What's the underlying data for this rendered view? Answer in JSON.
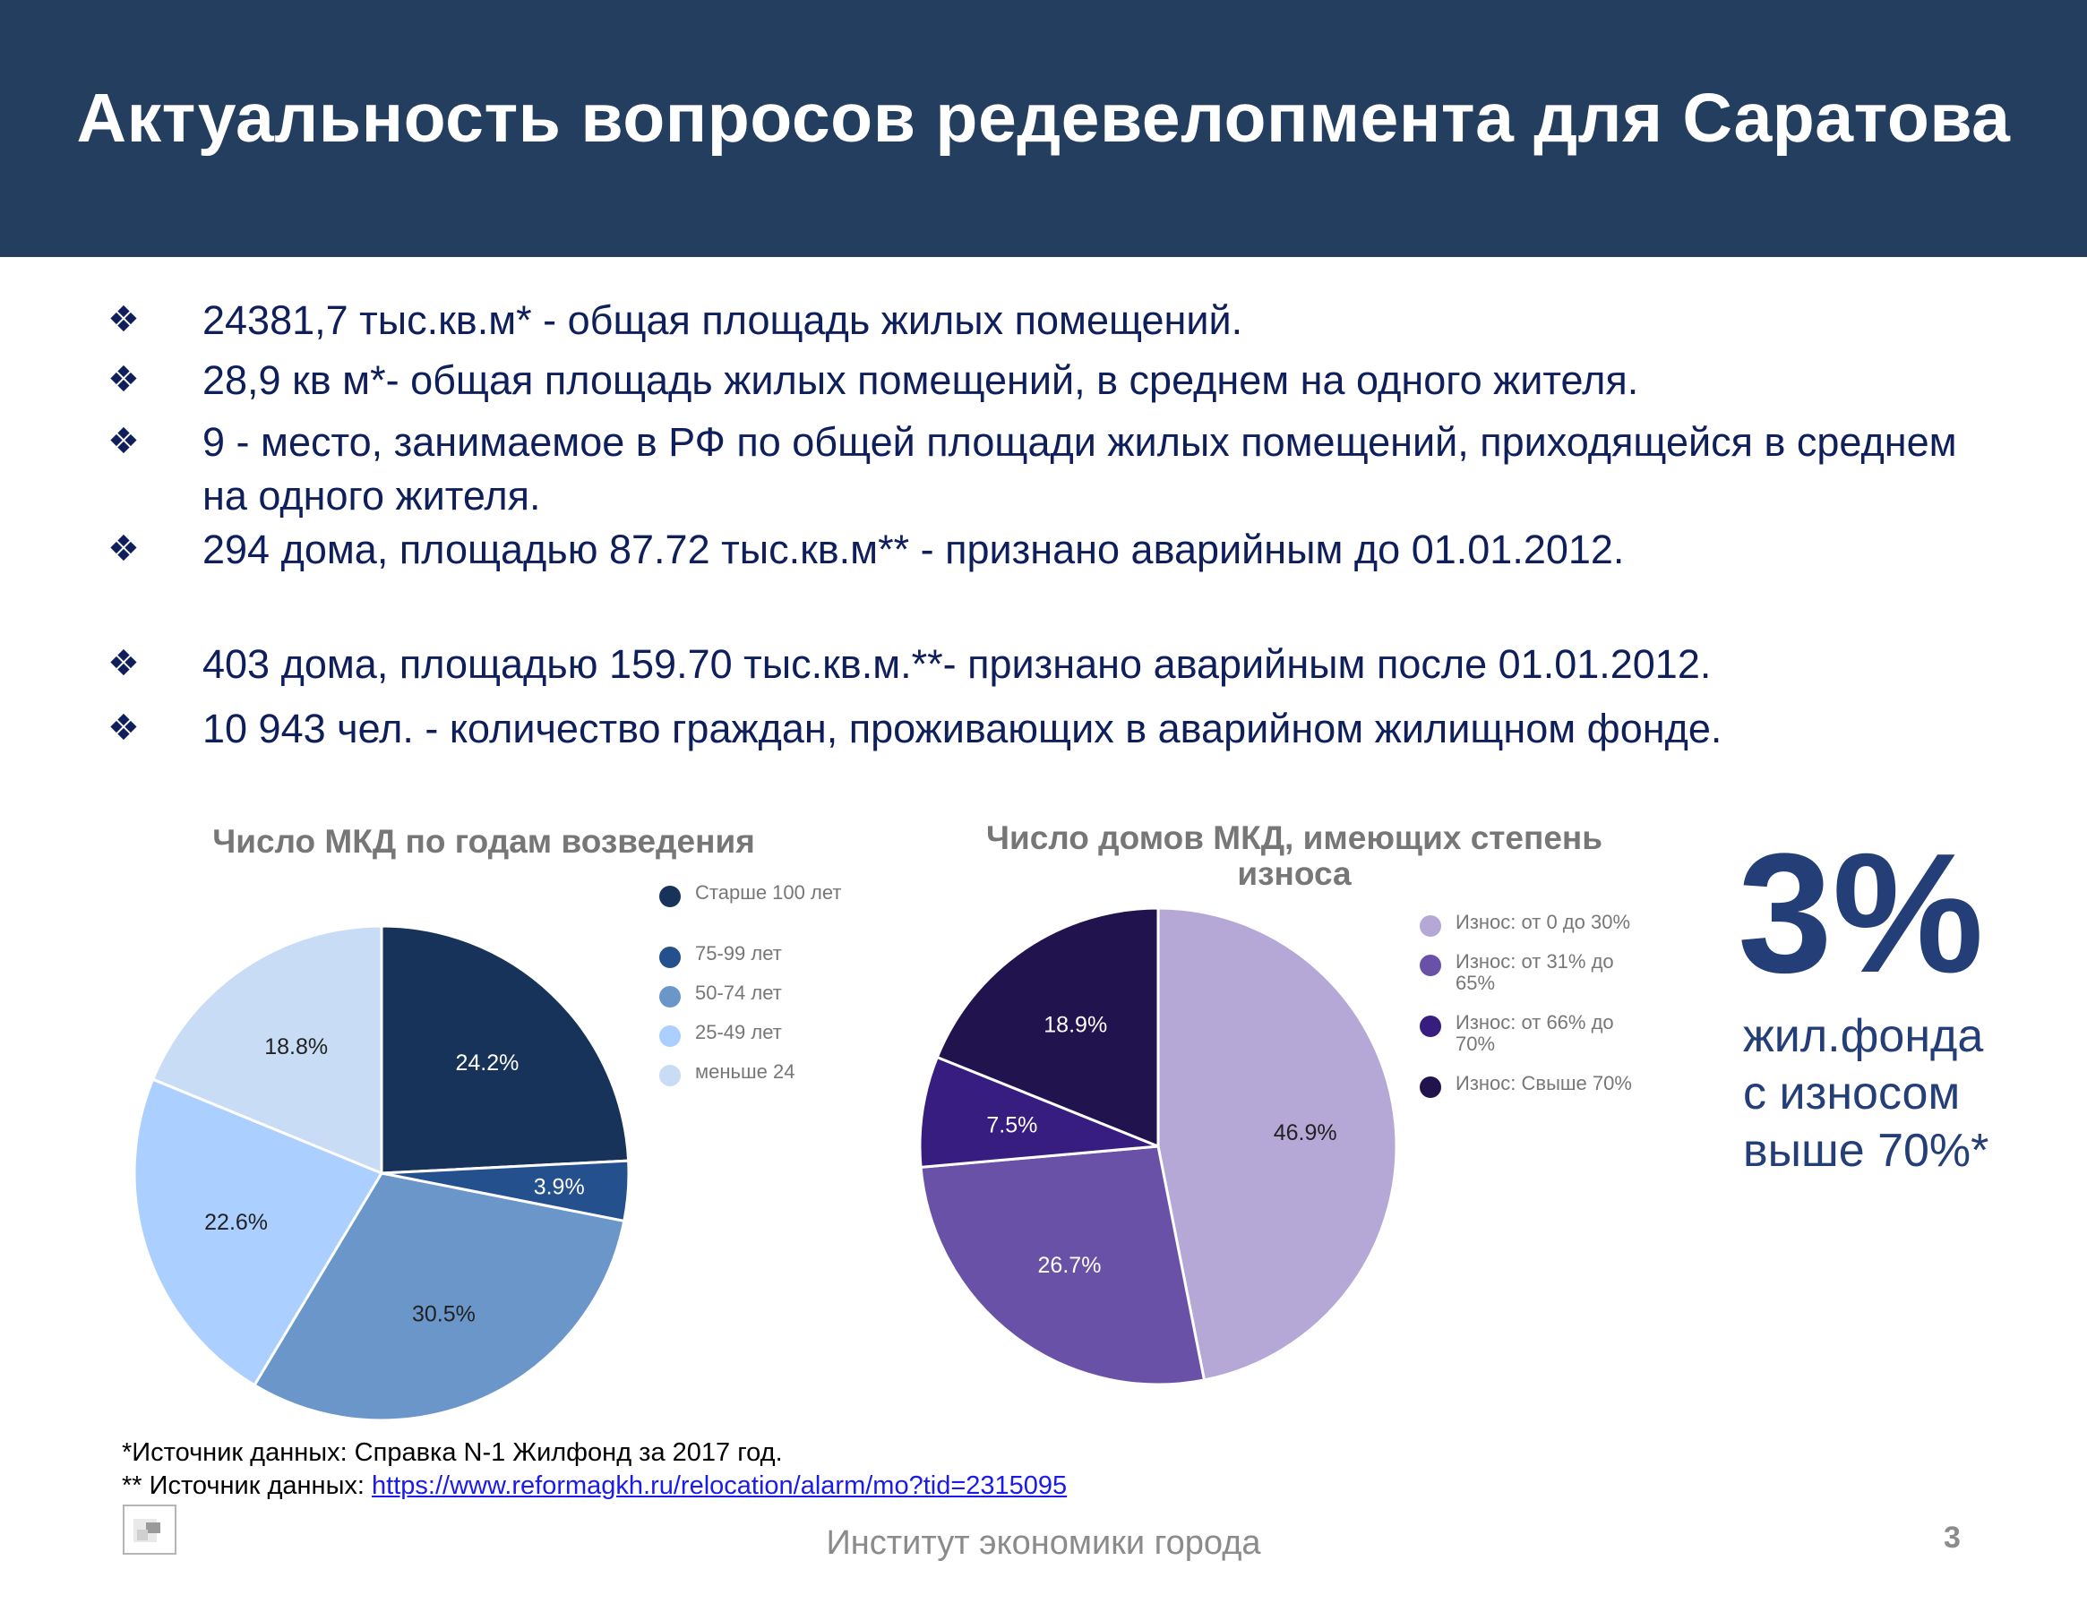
{
  "header": {
    "title": "Актуальность вопросов редевелопмента для Саратова"
  },
  "bullets": {
    "marker": "❖",
    "items": [
      "24381,7 тыс.кв.м* - общая площадь жилых помещений.",
      "28,9 кв м*- общая площадь жилых помещений, в среднем на одного жителя.",
      "9 - место, занимаемое в РФ по общей площади жилых помещений, приходящейся в среднем на одного жителя.",
      "294 дома, площадью 87.72 тыс.кв.м** - признано аварийным до 01.01.2012.",
      "403 дома, площадью 159.70 тыс.кв.м.**- признано аварийным после 01.01.2012.",
      "10 943 чел. - количество граждан, проживающих в аварийном жилищном фонде."
    ]
  },
  "chart_data": [
    {
      "type": "pie",
      "title": "Число МКД по годам возведения",
      "categories": [
        "Старше 100 лет",
        "75-99 лет",
        "50-74 лет",
        "25-49 лет",
        "меньше 24"
      ],
      "values": [
        24.2,
        3.9,
        30.5,
        22.6,
        18.8
      ],
      "value_labels": [
        "24.2%",
        "3.9%",
        "30.5%",
        "22.6%",
        "18.8%"
      ],
      "colors": [
        "#17335a",
        "#24508d",
        "#6a96c9",
        "#abcfff",
        "#c8ddf5"
      ],
      "legend": "right"
    },
    {
      "type": "pie",
      "title": "Число домов МКД, имеющих степень износа",
      "categories": [
        "Износ: от 0 до 30%",
        "Износ: от 31% до 65%",
        "Износ: от 66% до 70%",
        "Износ: Свыше 70%"
      ],
      "values": [
        46.9,
        26.7,
        7.5,
        18.9
      ],
      "value_labels": [
        "46.9%",
        "26.7%",
        "7.5%",
        "18.9%"
      ],
      "colors": [
        "#b5a7d6",
        "#6a51a8",
        "#371d7f",
        "#21134e"
      ],
      "legend": "right"
    }
  ],
  "highlight": {
    "value": "3%",
    "caption_lines": [
      "жил.фонда",
      "с износом",
      "выше 70%*"
    ]
  },
  "footnotes": {
    "line1": "*Источник данных: Справка N-1 Жилфонд за 2017 год.",
    "line2_prefix": "** Источник данных: ",
    "line2_link": "https://www.reformagkh.ru/relocation/alarm/mo?tid=2315095"
  },
  "footer": {
    "organization": "Институт экономики города",
    "page_number": "3"
  }
}
